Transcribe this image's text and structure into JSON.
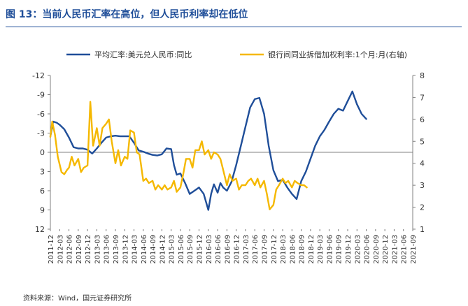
{
  "header": {
    "title": "图 13：当前人民币汇率在高位，但人民币利率却在低位"
  },
  "footer": {
    "source": "资料来源：Wind，国元证券研究所"
  },
  "colors": {
    "title": "#1f4e99",
    "series_fx": "#1f4e99",
    "series_rate": "#f5b800",
    "axis": "#808080"
  },
  "chart_data": {
    "type": "line",
    "title": "",
    "legend_position": "top",
    "x": [
      "2011-12",
      "2012-03",
      "2012-06",
      "2012-09",
      "2012-12",
      "2013-03",
      "2013-06",
      "2013-09",
      "2013-12",
      "2014-03",
      "2014-06",
      "2014-09",
      "2014-12",
      "2015-03",
      "2015-06",
      "2015-09",
      "2015-12",
      "2016-03",
      "2016-06",
      "2016-09",
      "2016-12",
      "2017-03",
      "2017-06",
      "2017-09",
      "2017-12",
      "2018-03",
      "2018-06",
      "2018-09",
      "2018-12",
      "2019-03",
      "2019-06",
      "2019-09",
      "2019-12",
      "2020-03",
      "2020-06",
      "2020-09",
      "2020-12",
      "2021-03",
      "2021-06",
      "2021-09"
    ],
    "left_axis": {
      "ylim": [
        12,
        -12
      ],
      "inverted": true,
      "ticks": [
        -12,
        -9,
        -6,
        -3,
        0,
        3,
        6,
        9,
        12
      ]
    },
    "right_axis": {
      "ylim": [
        1,
        8
      ],
      "ticks": [
        1,
        2,
        3,
        4,
        5,
        6,
        7,
        8
      ]
    },
    "series": [
      {
        "name": "平均汇率:美元兑人民币:同比",
        "axis": "left",
        "points": [
          [
            0,
            -2.5
          ],
          [
            0.3,
            -4.8
          ],
          [
            0.7,
            -4.6
          ],
          [
            1,
            -4.3
          ],
          [
            1.5,
            -3.6
          ],
          [
            2,
            -2.3
          ],
          [
            2.5,
            -0.8
          ],
          [
            3,
            -0.6
          ],
          [
            3.5,
            -0.6
          ],
          [
            4,
            -0.4
          ],
          [
            4.5,
            0.2
          ],
          [
            5,
            -0.6
          ],
          [
            5.5,
            -1.5
          ],
          [
            6,
            -2.3
          ],
          [
            6.5,
            -2.5
          ],
          [
            7,
            -2.6
          ],
          [
            7.5,
            -2.5
          ],
          [
            8,
            -2.5
          ],
          [
            8.5,
            -2.5
          ],
          [
            9,
            -1.5
          ],
          [
            9.5,
            -0.3
          ],
          [
            10,
            -0.1
          ],
          [
            10.5,
            0.2
          ],
          [
            11,
            0.4
          ],
          [
            11.5,
            0.5
          ],
          [
            12,
            0.3
          ],
          [
            12.5,
            -0.6
          ],
          [
            13,
            -0.5
          ],
          [
            13.3,
            2.0
          ],
          [
            13.6,
            3.5
          ],
          [
            14,
            3.3
          ],
          [
            14.5,
            4.8
          ],
          [
            15,
            6.5
          ],
          [
            15.5,
            6.0
          ],
          [
            16,
            5.5
          ],
          [
            16.5,
            6.5
          ],
          [
            17,
            9.0
          ],
          [
            17.3,
            6.5
          ],
          [
            17.6,
            5.0
          ],
          [
            18,
            6.3
          ],
          [
            18.3,
            4.8
          ],
          [
            18.6,
            5.5
          ],
          [
            19,
            6.0
          ],
          [
            19.5,
            4.6
          ],
          [
            20,
            2.0
          ],
          [
            20.5,
            -1.0
          ],
          [
            21,
            -4.0
          ],
          [
            21.5,
            -7.0
          ],
          [
            22,
            -8.3
          ],
          [
            22.5,
            -8.5
          ],
          [
            23,
            -6.0
          ],
          [
            23.5,
            -1.0
          ],
          [
            24,
            2.8
          ],
          [
            24.5,
            4.5
          ],
          [
            25,
            4.3
          ],
          [
            25.5,
            5.5
          ],
          [
            26,
            6.5
          ],
          [
            26.5,
            7.3
          ],
          [
            27,
            4.5
          ],
          [
            27.5,
            3.0
          ],
          [
            28,
            1.0
          ],
          [
            28.5,
            -1.0
          ],
          [
            29,
            -2.5
          ],
          [
            29.5,
            -3.5
          ],
          [
            30,
            -4.8
          ],
          [
            30.5,
            -6.0
          ],
          [
            31,
            -6.8
          ],
          [
            31.5,
            -6.5
          ],
          [
            32,
            -8.0
          ],
          [
            32.5,
            -9.5
          ],
          [
            33,
            -7.5
          ],
          [
            33.5,
            -6.0
          ],
          [
            34,
            -5.2
          ]
        ]
      },
      {
        "name": "银行间同业拆借加权利率:1个月:月(右轴)",
        "axis": "right",
        "points": [
          [
            0,
            5.2
          ],
          [
            0.2,
            5.9
          ],
          [
            0.5,
            5.3
          ],
          [
            0.8,
            4.3
          ],
          [
            1.2,
            3.6
          ],
          [
            1.5,
            3.5
          ],
          [
            1.8,
            3.7
          ],
          [
            2,
            3.8
          ],
          [
            2.3,
            4.3
          ],
          [
            2.6,
            3.9
          ],
          [
            3,
            4.2
          ],
          [
            3.3,
            3.6
          ],
          [
            3.6,
            3.8
          ],
          [
            4,
            3.9
          ],
          [
            4.3,
            6.8
          ],
          [
            4.6,
            4.8
          ],
          [
            5,
            5.6
          ],
          [
            5.3,
            4.8
          ],
          [
            5.6,
            5.6
          ],
          [
            6,
            5.8
          ],
          [
            6.3,
            6.0
          ],
          [
            6.6,
            5.0
          ],
          [
            7,
            4.0
          ],
          [
            7.3,
            4.6
          ],
          [
            7.6,
            3.9
          ],
          [
            8,
            4.3
          ],
          [
            8.3,
            4.2
          ],
          [
            8.6,
            5.5
          ],
          [
            9,
            5.4
          ],
          [
            9.3,
            4.5
          ],
          [
            9.6,
            4.4
          ],
          [
            10,
            3.2
          ],
          [
            10.3,
            3.3
          ],
          [
            10.6,
            3.1
          ],
          [
            11,
            3.2
          ],
          [
            11.3,
            2.8
          ],
          [
            11.6,
            3.0
          ],
          [
            12,
            2.8
          ],
          [
            12.3,
            3.0
          ],
          [
            12.6,
            2.8
          ],
          [
            13,
            2.9
          ],
          [
            13.3,
            3.2
          ],
          [
            13.6,
            2.7
          ],
          [
            14,
            2.9
          ],
          [
            14.3,
            3.5
          ],
          [
            14.6,
            4.2
          ],
          [
            15,
            4.2
          ],
          [
            15.3,
            3.8
          ],
          [
            15.6,
            4.6
          ],
          [
            16,
            4.6
          ],
          [
            16.3,
            5.0
          ],
          [
            16.6,
            4.4
          ],
          [
            17,
            4.6
          ],
          [
            17.3,
            4.2
          ],
          [
            17.6,
            4.5
          ],
          [
            18,
            4.4
          ],
          [
            18.3,
            4.2
          ],
          [
            18.6,
            3.7
          ],
          [
            19,
            3.0
          ],
          [
            19.3,
            3.5
          ],
          [
            19.6,
            3.2
          ],
          [
            20,
            3.3
          ],
          [
            20.3,
            2.8
          ],
          [
            20.6,
            3.0
          ],
          [
            21,
            3.0
          ],
          [
            21.3,
            3.2
          ],
          [
            21.6,
            3.3
          ],
          [
            22,
            3.0
          ],
          [
            22.3,
            3.3
          ],
          [
            22.6,
            2.9
          ],
          [
            23,
            3.2
          ],
          [
            23.3,
            2.6
          ],
          [
            23.6,
            1.9
          ],
          [
            24,
            2.1
          ],
          [
            24.3,
            2.8
          ],
          [
            24.6,
            3.0
          ],
          [
            25,
            3.3
          ],
          [
            25.3,
            3.1
          ],
          [
            25.6,
            3.2
          ],
          [
            26,
            2.9
          ],
          [
            26.3,
            3.2
          ],
          [
            26.6,
            3.1
          ],
          [
            27,
            3.0
          ],
          [
            27.3,
            3.0
          ],
          [
            27.6,
            2.9
          ]
        ]
      }
    ]
  }
}
